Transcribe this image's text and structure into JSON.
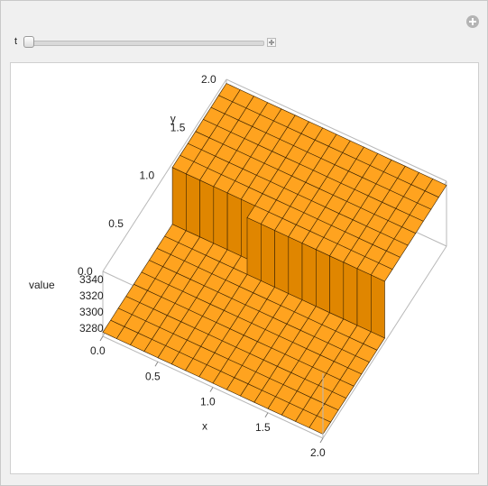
{
  "controls": {
    "t_label": "t",
    "t_value": 0
  },
  "chart_data": {
    "type": "surface3d",
    "x_axis": {
      "label": "x",
      "ticks": [
        "0.0",
        "0.5",
        "1.0",
        "1.5",
        "2.0"
      ],
      "range": [
        0,
        2
      ]
    },
    "y_axis": {
      "label": "y",
      "ticks": [
        "0.0",
        "0.5",
        "1.0",
        "1.5",
        "2.0"
      ],
      "range": [
        0,
        2
      ]
    },
    "z_axis": {
      "label": "value",
      "ticks": [
        "3280",
        "3300",
        "3320",
        "3340"
      ],
      "range": [
        3270,
        3350
      ]
    },
    "surface": {
      "low_value": 3275,
      "high_value": 3345,
      "step_x": 1.0,
      "step_y": 1.0,
      "description_rule": "value is high where x >= 1.0 or y >= 1.0... piecewise plateau"
    },
    "colors": {
      "surface": "#ffa31f",
      "surface_dark": "#e08600",
      "edge": "#3a2200",
      "wall_shadow": "#4a2600"
    }
  }
}
